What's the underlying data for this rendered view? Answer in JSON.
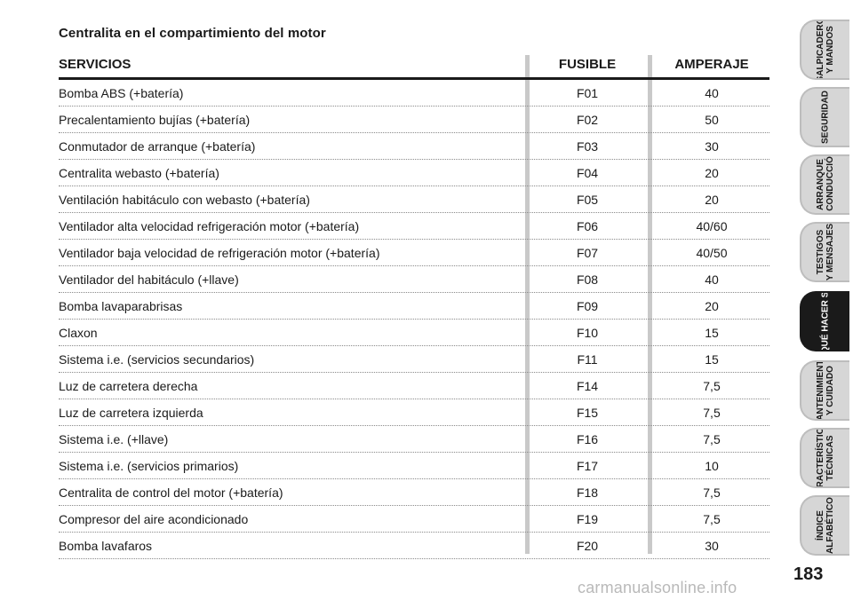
{
  "section_title": "Centralita en el compartimiento del motor",
  "table": {
    "headers": {
      "service": "SERVICIOS",
      "fuse": "FUSIBLE",
      "amperage": "AMPERAJE"
    },
    "rows": [
      {
        "service": "Bomba ABS (+batería)",
        "fuse": "F01",
        "amperage": "40"
      },
      {
        "service": "Precalentamiento bujías (+batería)",
        "fuse": "F02",
        "amperage": "50"
      },
      {
        "service": "Conmutador de arranque (+batería)",
        "fuse": "F03",
        "amperage": "30"
      },
      {
        "service": "Centralita webasto (+batería)",
        "fuse": "F04",
        "amperage": "20"
      },
      {
        "service": "Ventilación habitáculo con webasto (+batería)",
        "fuse": "F05",
        "amperage": "20"
      },
      {
        "service": "Ventilador alta velocidad refrigeración motor (+batería)",
        "fuse": "F06",
        "amperage": "40/60"
      },
      {
        "service": "Ventilador baja velocidad de refrigeración motor (+batería)",
        "fuse": "F07",
        "amperage": "40/50"
      },
      {
        "service": "Ventilador del habitáculo (+llave)",
        "fuse": "F08",
        "amperage": "40"
      },
      {
        "service": "Bomba lavaparabrisas",
        "fuse": "F09",
        "amperage": "20"
      },
      {
        "service": "Claxon",
        "fuse": "F10",
        "amperage": "15"
      },
      {
        "service": "Sistema i.e. (servicios secundarios)",
        "fuse": "F11",
        "amperage": "15"
      },
      {
        "service": "Luz de carretera derecha",
        "fuse": "F14",
        "amperage": "7,5"
      },
      {
        "service": "Luz de carretera izquierda",
        "fuse": "F15",
        "amperage": "7,5"
      },
      {
        "service": "Sistema i.e. (+llave)",
        "fuse": "F16",
        "amperage": "7,5"
      },
      {
        "service": "Sistema i.e. (servicios primarios)",
        "fuse": "F17",
        "amperage": "10"
      },
      {
        "service": "Centralita de control del motor (+batería)",
        "fuse": "F18",
        "amperage": "7,5"
      },
      {
        "service": "Compresor del aire acondicionado",
        "fuse": "F19",
        "amperage": "7,5"
      },
      {
        "service": "Bomba lavafaros",
        "fuse": "F20",
        "amperage": "30"
      }
    ]
  },
  "side_tabs": [
    {
      "label": "SALPICADERO\nY MANDOS",
      "active": false
    },
    {
      "label": "SEGURIDAD",
      "active": false
    },
    {
      "label": "ARRANQUE\nY CONDUCCIÓN",
      "active": false
    },
    {
      "label": "TESTIGOS\nY MENSAJES",
      "active": false
    },
    {
      "label": "QUÉ HACER SI",
      "active": true
    },
    {
      "label": "MANTENIMIENTO\nY CUIDADO",
      "active": false
    },
    {
      "label": "CARACTERÍSTICAS\nTÉCNICAS",
      "active": false
    },
    {
      "label": "ÍNDICE\nALFABÉTICO",
      "active": false
    }
  ],
  "page_number": "183",
  "watermark": "carmanualsonline.info",
  "colors": {
    "active_tab": "#1a1a1a",
    "inactive_tab": "#d6d6d6",
    "column_bar": "#c9c9c9"
  }
}
